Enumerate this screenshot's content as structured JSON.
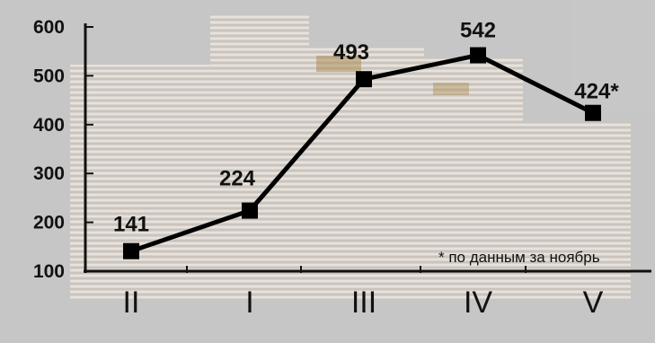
{
  "chart_data": {
    "type": "line",
    "categories": [
      "II",
      "I",
      "III",
      "IV",
      "V"
    ],
    "values": [
      141,
      224,
      493,
      542,
      424
    ],
    "data_labels": [
      "141",
      "224",
      "493",
      "542",
      "424*"
    ],
    "title": "",
    "xlabel": "",
    "ylabel": "",
    "ylim": [
      100,
      600
    ],
    "yticks": [
      100,
      200,
      300,
      400,
      500,
      600
    ],
    "grid": false,
    "footnote": "* по данным за ноябрь",
    "line_color": "#000000",
    "marker": "square",
    "background": "stack of papers photograph"
  }
}
